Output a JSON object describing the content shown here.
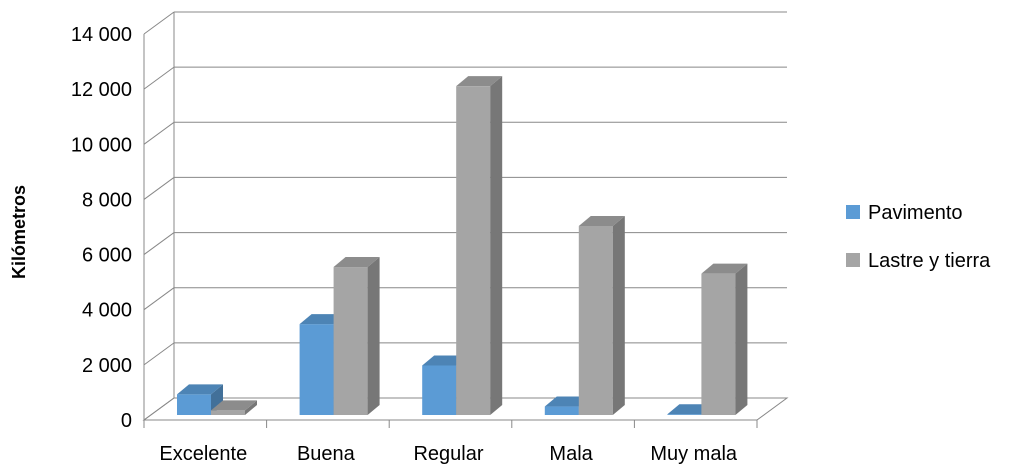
{
  "chart_data": {
    "type": "bar",
    "subtype": "3d-clustered-column",
    "title": "",
    "xlabel": "",
    "ylabel": "Kilómetros",
    "categories": [
      "Excelente",
      "Buena",
      "Regular",
      "Mala",
      "Muy mala"
    ],
    "series": [
      {
        "name": "Pavimento",
        "values": [
          1000,
          3550,
          2050,
          560,
          280
        ],
        "color": "#5B9BD5"
      },
      {
        "name": "Lastre y tierra",
        "values": [
          420,
          5620,
          12180,
          7110,
          5380
        ],
        "color": "#A5A5A5"
      }
    ],
    "yticks": [
      "0",
      "2 000",
      "4 000",
      "6 000",
      "8 000",
      "10 000",
      "12 000",
      "14 000"
    ],
    "ylim": [
      0,
      14000
    ],
    "grid": true,
    "legend_position": "right"
  }
}
